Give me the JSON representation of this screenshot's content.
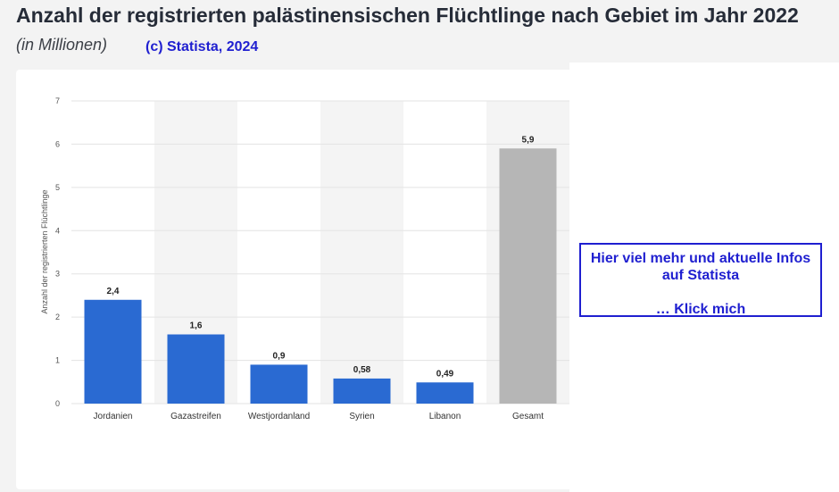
{
  "header": {
    "title": "Anzahl der registrierten palästinensischen Flüchtlinge nach Gebiet im Jahr 2022",
    "subtitle": "(in Millionen)",
    "copyright": "(c) Statista, 2024"
  },
  "info_box": {
    "line1": "Hier viel mehr und aktuelle Infos",
    "line2": "auf Statista",
    "line3": "… Klick mich",
    "border_color": "#1f1fd0"
  },
  "chart_data": {
    "type": "bar",
    "categories": [
      "Jordanien",
      "Gazastreifen",
      "Westjordanland",
      "Syrien",
      "Libanon",
      "Gesamt"
    ],
    "values": [
      2.4,
      1.6,
      0.9,
      0.58,
      0.49,
      5.9
    ],
    "value_labels": [
      "2,4",
      "1,6",
      "0,9",
      "0,58",
      "0,49",
      "5,9"
    ],
    "ylabel": "Anzahl der registrierten Flüchtlinge",
    "ylim": [
      0,
      7
    ],
    "yticks": [
      0,
      1,
      2,
      3,
      4,
      5,
      6,
      7
    ],
    "grid": true,
    "colors": {
      "bar": "#2a6ad2",
      "total_bar": "#b6b6b6",
      "band": "#f4f4f4",
      "grid": "#e3e3e3"
    }
  }
}
